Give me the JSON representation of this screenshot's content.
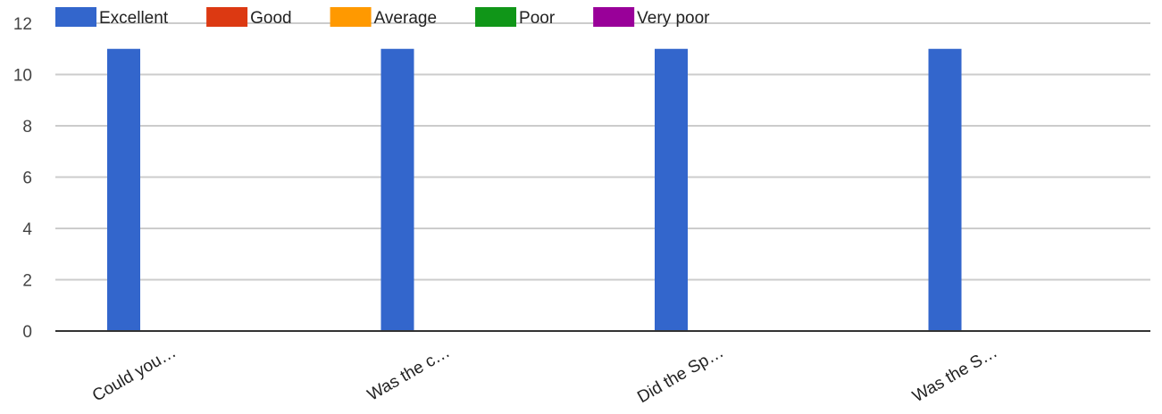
{
  "chart_data": {
    "type": "bar",
    "categories": [
      "Could you…",
      "Was the c…",
      "Did the Sp…",
      "Was the S…"
    ],
    "series": [
      {
        "name": "Excellent",
        "color": "#3366cc",
        "values": [
          11,
          11,
          11,
          11
        ]
      },
      {
        "name": "Good",
        "color": "#dc3912",
        "values": [
          0,
          0,
          0,
          0
        ]
      },
      {
        "name": "Average",
        "color": "#ff9900",
        "values": [
          0,
          0,
          0,
          0
        ]
      },
      {
        "name": "Poor",
        "color": "#109618",
        "values": [
          0,
          0,
          0,
          0
        ]
      },
      {
        "name": "Very poor",
        "color": "#990099",
        "values": [
          0,
          0,
          0,
          0
        ]
      }
    ],
    "ylim": [
      0,
      12
    ],
    "yticks": [
      0,
      2,
      4,
      6,
      8,
      10,
      12
    ],
    "grid": true,
    "legend_position": "top-left"
  }
}
